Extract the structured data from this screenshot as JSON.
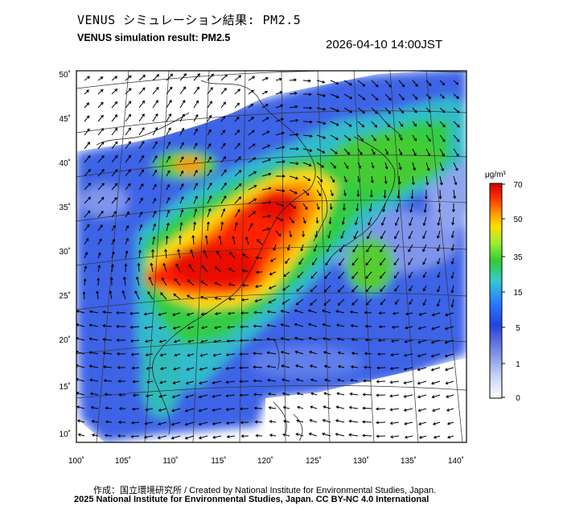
{
  "header": {
    "title_jp": "VENUS シミュレーション結果: PM2.5",
    "title_en": "VENUS simulation result: PM2.5",
    "timestamp": "2026-04-10 14:00JST"
  },
  "map": {
    "lat_labels": [
      "50˚",
      "45˚",
      "40˚",
      "35˚",
      "30˚",
      "25˚",
      "20˚",
      "15˚",
      "10˚"
    ],
    "lon_labels": [
      "100˚",
      "105˚",
      "110˚",
      "115˚",
      "120˚",
      "125˚",
      "130˚",
      "135˚",
      "140˚"
    ]
  },
  "colorbar": {
    "unit": "μg/m³",
    "labels": [
      "70",
      "50",
      "35",
      "15",
      "5",
      "1",
      "0"
    ],
    "colors": [
      "#cc0000",
      "#ff3300",
      "#ff9900",
      "#ffdd00",
      "#99ee33",
      "#33cc33",
      "#33cccc",
      "#2a7fff",
      "#2244dd",
      "#6677dd",
      "#c8d4f8"
    ]
  },
  "footer": {
    "credit_line1": "作成：国立環境研究所 / Created by National Institute for Environmental Studies, Japan.",
    "credit_line2": "2025 National Institute for Environmental Studies, Japan. CC BY-NC 4.0 International"
  }
}
